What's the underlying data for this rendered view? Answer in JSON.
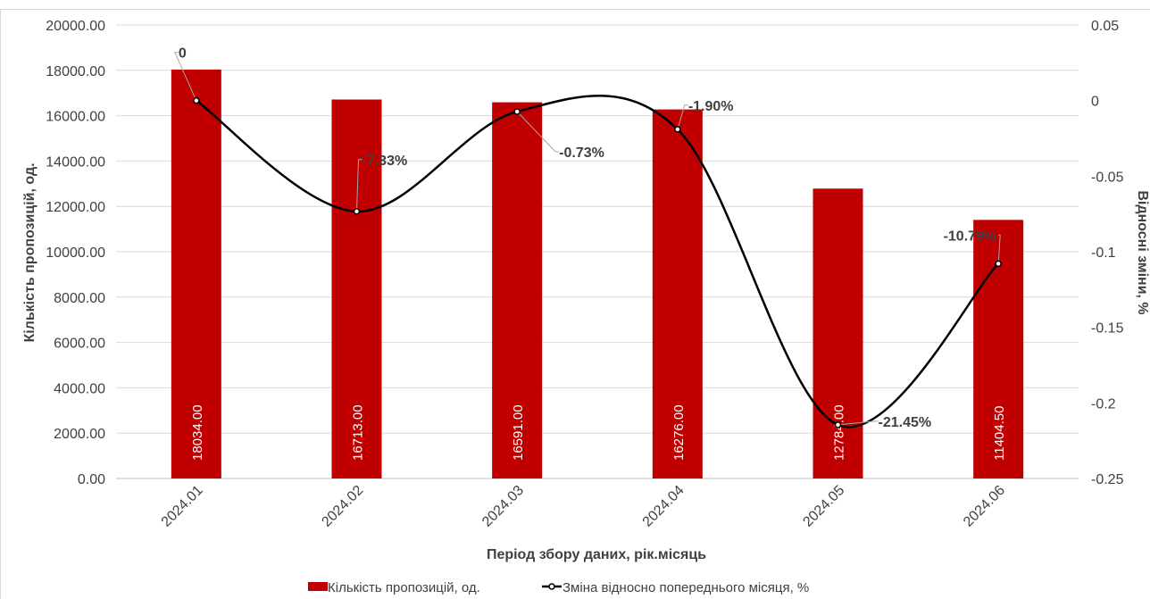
{
  "chart_data": {
    "type": "bar+line",
    "categories": [
      "2024.01",
      "2024.02",
      "2024.03",
      "2024.04",
      "2024.05",
      "2024.06"
    ],
    "series": [
      {
        "name": "Кількість пропозицій, од.",
        "type": "bar",
        "axis": "left",
        "color": "#C00000",
        "values": [
          18034.0,
          16713.0,
          16591.0,
          16276.0,
          12784.0,
          11404.5
        ],
        "labels": [
          "18034.00",
          "16713.00",
          "16591.00",
          "16276.00",
          "12784.00",
          "11404.50"
        ]
      },
      {
        "name": "Зміна відносно попереднього місяця, %",
        "type": "line",
        "axis": "right",
        "color": "#000000",
        "smooth": true,
        "values": [
          0,
          -0.0733,
          -0.0073,
          -0.019,
          -0.2145,
          -0.1079
        ],
        "labels": [
          "0",
          "-7.33%",
          "-0.73%",
          "-1.90%",
          "-21.45%",
          "-10.79%"
        ]
      }
    ],
    "xlabel": "Період збору даних, рік.місяць",
    "ylabel_left": "Кількість пропозицій, од.",
    "ylabel_right": "Відносні зміни, %",
    "ylim_left": [
      0,
      20000
    ],
    "yticks_left": [
      "0.00",
      "2000.00",
      "4000.00",
      "6000.00",
      "8000.00",
      "10000.00",
      "12000.00",
      "14000.00",
      "16000.00",
      "18000.00",
      "20000.00"
    ],
    "ylim_right": [
      -0.25,
      0.05
    ],
    "yticks_right": [
      "-0.25",
      "-0.2",
      "-0.15",
      "-0.1",
      "-0.05",
      "0",
      "0.05"
    ],
    "grid": "horizontal",
    "legend_position": "bottom"
  }
}
